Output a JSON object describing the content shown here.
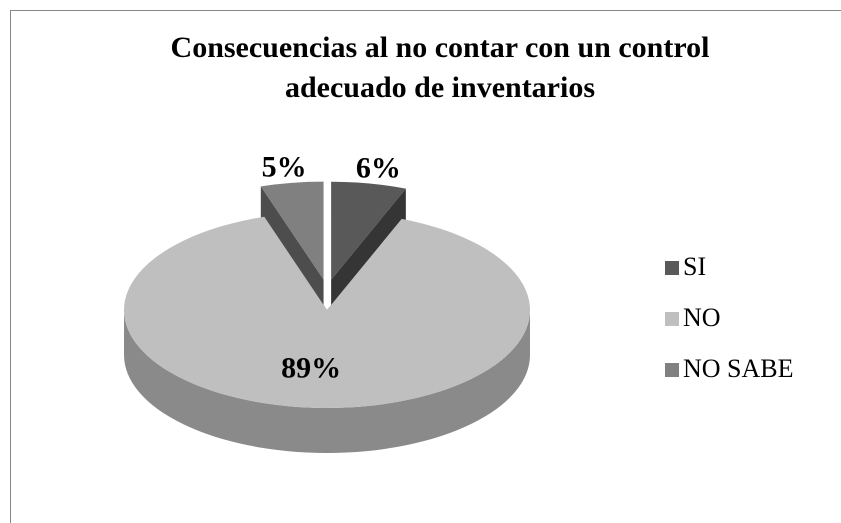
{
  "chart_data": {
    "type": "pie",
    "title": "Consecuencias al no contar con un control adecuado de inventarios",
    "categories": [
      "SI",
      "NO",
      "NO SABE"
    ],
    "values": [
      6,
      89,
      5
    ],
    "value_labels": [
      "6%",
      "89%",
      "5%"
    ],
    "colors": [
      "#595959",
      "#bfbfbf",
      "#808080"
    ],
    "legend": "right"
  }
}
